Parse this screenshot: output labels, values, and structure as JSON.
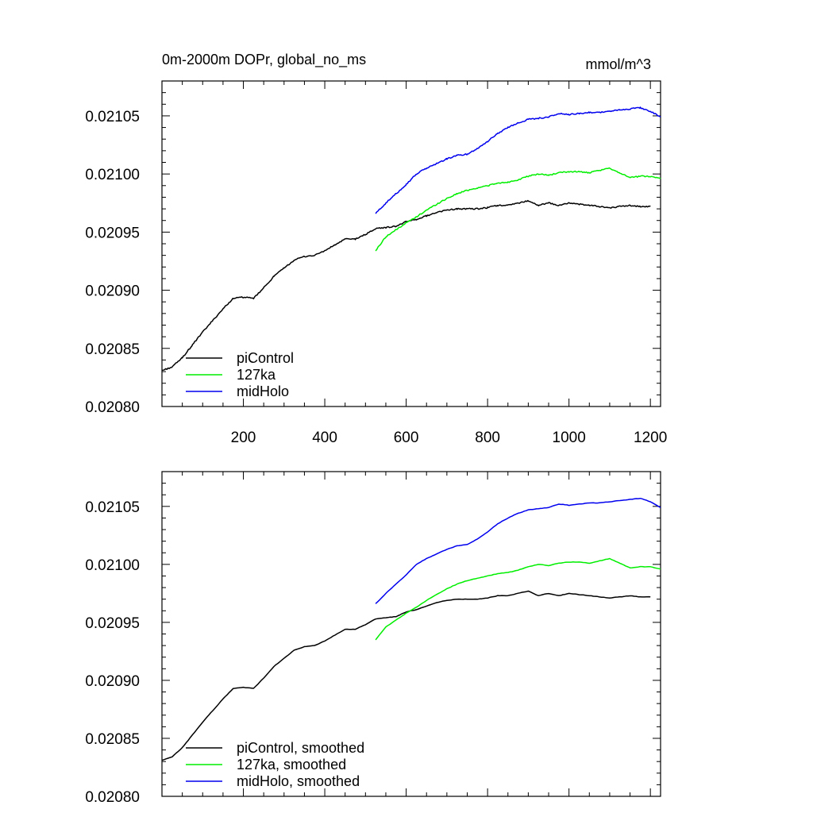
{
  "chart_data": [
    {
      "type": "line",
      "title": "0m-2000m DOPr, global_no_ms",
      "units": "mmol/m^3",
      "xlim": [
        0,
        1225
      ],
      "ylim": [
        0.0208,
        0.02108
      ],
      "x_ticks": [
        200,
        400,
        600,
        800,
        1000,
        1200
      ],
      "x_tick_labels": [
        "200",
        "400",
        "600",
        "800",
        "1000",
        "1200"
      ],
      "y_ticks": [
        0.0208,
        0.02085,
        0.0209,
        0.02095,
        0.021,
        0.02105
      ],
      "y_tick_labels": [
        "0.02080",
        "0.02085",
        "0.02090",
        "0.02095",
        "0.02100",
        "0.02105"
      ],
      "legend_position": "bottom-left",
      "series": [
        {
          "name": "piControl",
          "color": "#000000",
          "x": [
            0,
            25,
            50,
            75,
            100,
            125,
            150,
            175,
            200,
            225,
            250,
            275,
            300,
            325,
            350,
            375,
            400,
            425,
            450,
            475,
            500,
            525,
            550,
            575,
            600,
            625,
            650,
            675,
            700,
            725,
            750,
            775,
            800,
            825,
            850,
            875,
            900,
            925,
            950,
            975,
            1000,
            1025,
            1050,
            1075,
            1100,
            1125,
            1150,
            1175,
            1200
          ],
          "values": [
            0.020831,
            0.020834,
            0.020842,
            0.020853,
            0.020864,
            0.020874,
            0.020884,
            0.020893,
            0.020894,
            0.020893,
            0.020902,
            0.020912,
            0.020919,
            0.020926,
            0.020929,
            0.02093,
            0.020934,
            0.020939,
            0.020944,
            0.020944,
            0.020948,
            0.020953,
            0.020954,
            0.020955,
            0.020959,
            0.020961,
            0.020964,
            0.020967,
            0.020969,
            0.02097,
            0.02097,
            0.02097,
            0.020971,
            0.020973,
            0.020973,
            0.020975,
            0.020977,
            0.020973,
            0.020975,
            0.020973,
            0.020975,
            0.020974,
            0.020973,
            0.020972,
            0.020971,
            0.020972,
            0.020973,
            0.020972,
            0.020972
          ]
        },
        {
          "name": "127ka",
          "color": "#00ee00",
          "x": [
            525,
            550,
            575,
            600,
            625,
            650,
            675,
            700,
            725,
            750,
            775,
            800,
            825,
            850,
            875,
            900,
            925,
            950,
            975,
            1000,
            1025,
            1050,
            1075,
            1100,
            1125,
            1150,
            1175,
            1200,
            1225
          ],
          "values": [
            0.020934,
            0.020946,
            0.020952,
            0.020958,
            0.020963,
            0.020969,
            0.020974,
            0.020979,
            0.020983,
            0.020986,
            0.020988,
            0.02099,
            0.020992,
            0.020993,
            0.020995,
            0.020998,
            0.021,
            0.020999,
            0.021001,
            0.021002,
            0.021002,
            0.021001,
            0.021003,
            0.021005,
            0.021001,
            0.020997,
            0.020998,
            0.020998,
            0.020996
          ]
        },
        {
          "name": "midHolo",
          "color": "#0000ee",
          "x": [
            525,
            550,
            575,
            600,
            625,
            650,
            675,
            700,
            725,
            750,
            775,
            800,
            825,
            850,
            875,
            900,
            925,
            950,
            975,
            1000,
            1025,
            1050,
            1075,
            1100,
            1125,
            1150,
            1175,
            1200,
            1225
          ],
          "values": [
            0.020966,
            0.020975,
            0.020983,
            0.020991,
            0.021,
            0.021005,
            0.021009,
            0.021013,
            0.021016,
            0.021017,
            0.021022,
            0.021028,
            0.021035,
            0.02104,
            0.021044,
            0.021047,
            0.021048,
            0.021049,
            0.021052,
            0.021051,
            0.021052,
            0.021053,
            0.021053,
            0.021054,
            0.021055,
            0.021056,
            0.021057,
            0.021054,
            0.021049
          ]
        }
      ]
    },
    {
      "type": "line",
      "title": "",
      "xlim": [
        0,
        1225
      ],
      "ylim": [
        0.0208,
        0.02108
      ],
      "x_ticks": [
        200,
        400,
        600,
        800,
        1000,
        1200
      ],
      "x_tick_labels": [],
      "y_ticks": [
        0.0208,
        0.02085,
        0.0209,
        0.02095,
        0.021,
        0.02105
      ],
      "y_tick_labels": [
        "0.02080",
        "0.02085",
        "0.02090",
        "0.02095",
        "0.02100",
        "0.02105"
      ],
      "legend_position": "bottom-left",
      "series": [
        {
          "name": "piControl, smoothed",
          "color": "#000000",
          "x": [
            0,
            25,
            50,
            75,
            100,
            125,
            150,
            175,
            200,
            225,
            250,
            275,
            300,
            325,
            350,
            375,
            400,
            425,
            450,
            475,
            500,
            525,
            550,
            575,
            600,
            625,
            650,
            675,
            700,
            725,
            750,
            775,
            800,
            825,
            850,
            875,
            900,
            925,
            950,
            975,
            1000,
            1025,
            1050,
            1075,
            1100,
            1125,
            1150,
            1175,
            1200
          ],
          "values": [
            0.020831,
            0.020834,
            0.020842,
            0.020853,
            0.020864,
            0.020874,
            0.020884,
            0.020893,
            0.020894,
            0.020893,
            0.020902,
            0.020912,
            0.020919,
            0.020926,
            0.020929,
            0.02093,
            0.020934,
            0.020939,
            0.020944,
            0.020944,
            0.020948,
            0.020953,
            0.020954,
            0.020955,
            0.020959,
            0.020961,
            0.020964,
            0.020967,
            0.020969,
            0.02097,
            0.02097,
            0.02097,
            0.020971,
            0.020973,
            0.020973,
            0.020975,
            0.020977,
            0.020973,
            0.020975,
            0.020973,
            0.020975,
            0.020974,
            0.020973,
            0.020972,
            0.020971,
            0.020972,
            0.020973,
            0.020972,
            0.020972
          ]
        },
        {
          "name": "127ka, smoothed",
          "color": "#00ee00",
          "x": [
            525,
            550,
            575,
            600,
            625,
            650,
            675,
            700,
            725,
            750,
            775,
            800,
            825,
            850,
            875,
            900,
            925,
            950,
            975,
            1000,
            1025,
            1050,
            1075,
            1100,
            1125,
            1150,
            1175,
            1200,
            1225
          ],
          "values": [
            0.020935,
            0.020946,
            0.020952,
            0.020958,
            0.020963,
            0.020969,
            0.020974,
            0.020979,
            0.020983,
            0.020986,
            0.020988,
            0.02099,
            0.020992,
            0.020993,
            0.020995,
            0.020998,
            0.021,
            0.020999,
            0.021001,
            0.021002,
            0.021002,
            0.021001,
            0.021003,
            0.021005,
            0.021001,
            0.020997,
            0.020998,
            0.020998,
            0.020996
          ]
        },
        {
          "name": "midHolo, smoothed",
          "color": "#0000ee",
          "x": [
            525,
            550,
            575,
            600,
            625,
            650,
            675,
            700,
            725,
            750,
            775,
            800,
            825,
            850,
            875,
            900,
            925,
            950,
            975,
            1000,
            1025,
            1050,
            1075,
            1100,
            1125,
            1150,
            1175,
            1200,
            1225
          ],
          "values": [
            0.020966,
            0.020975,
            0.020983,
            0.020991,
            0.021,
            0.021005,
            0.021009,
            0.021013,
            0.021016,
            0.021017,
            0.021022,
            0.021028,
            0.021035,
            0.02104,
            0.021044,
            0.021047,
            0.021048,
            0.021049,
            0.021052,
            0.021051,
            0.021052,
            0.021053,
            0.021053,
            0.021054,
            0.021055,
            0.021056,
            0.021057,
            0.021054,
            0.021049
          ]
        }
      ]
    }
  ]
}
